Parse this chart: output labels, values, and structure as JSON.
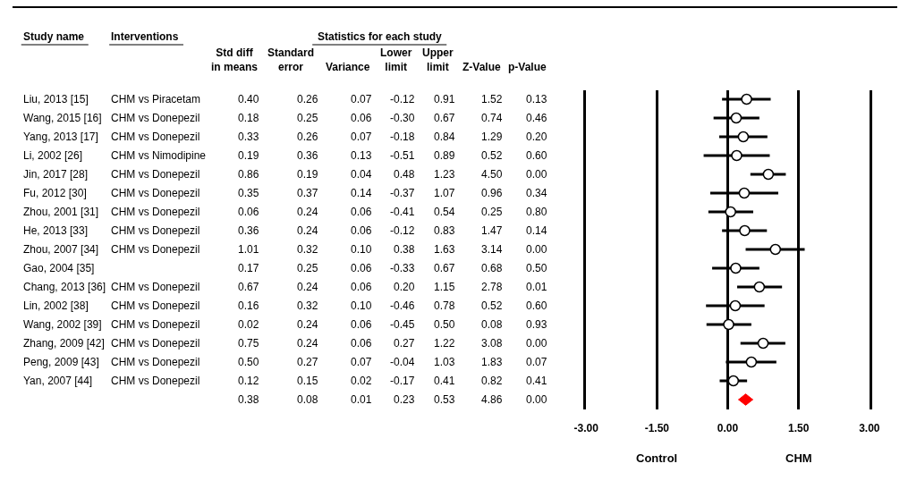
{
  "chart_data": [
    {
      "type": "other",
      "annotations": [
        "Study name",
        "Interventions",
        "Statistics for each study",
        "Std diff\nin means",
        "Standard\nerror",
        "Variance",
        "Lower\nlimit",
        "Upper\nlimit",
        "Z-Value",
        "p-Value",
        "Liu, 2013 [15]",
        "CHM vs Piracetam",
        "0.40",
        "0.26",
        "0.07",
        "-0.12",
        "0.91",
        "1.52",
        "0.13",
        "Wang, 2015 [16]",
        "CHM vs Donepezil",
        "0.18",
        "0.25",
        "0.06",
        "-0.30",
        "0.67",
        "0.74",
        "0.46",
        "Yang, 2013 [17]",
        "CHM vs Donepezil",
        "0.33",
        "0.26",
        "0.07",
        "-0.18",
        "0.84",
        "1.29",
        "0.20",
        "Li, 2002 [26]",
        "CHM vs Nimodipine",
        "0.19",
        "0.36",
        "0.13",
        "-0.51",
        "0.89",
        "0.52",
        "0.60",
        "Jin, 2017 [28]",
        "CHM vs Donepezil",
        "0.86",
        "0.19",
        "0.04",
        "0.48",
        "1.23",
        "4.50",
        "0.00",
        "Fu, 2012 [30]",
        "CHM vs Donepezil",
        "0.35",
        "0.37",
        "0.14",
        "-0.37",
        "1.07",
        "0.96",
        "0.34",
        "Zhou, 2001 [31]",
        "CHM vs Donepezil",
        "0.06",
        "0.24",
        "0.06",
        "-0.41",
        "0.54",
        "0.25",
        "0.80",
        "He, 2013 [33]",
        "CHM vs Donepezil",
        "0.36",
        "0.24",
        "0.06",
        "-0.12",
        "0.83",
        "1.47",
        "0.14",
        "Zhou, 2007 [34]",
        "CHM vs Donepezil",
        "1.01",
        "0.32",
        "0.10",
        "0.38",
        "1.63",
        "3.14",
        "0.00",
        "Gao, 2004 [35]",
        null,
        "0.17",
        "0.25",
        "0.06",
        "-0.33",
        "0.67",
        "0.68",
        "0.50",
        "Chang, 2013 [36]",
        "CHM vs Donepezil",
        "0.67",
        "0.24",
        "0.06",
        "0.20",
        "1.15",
        "2.78",
        "0.01",
        "Lin, 2002 [38]",
        "CHM vs Donepezil",
        "0.16",
        "0.32",
        "0.10",
        "-0.46",
        "0.78",
        "0.52",
        "0.60",
        "Wang, 2002 [39]",
        "CHM vs Donepezil",
        "0.02",
        "0.24",
        "0.06",
        "-0.45",
        "0.50",
        "0.08",
        "0.93",
        "Zhang, 2009 [42]",
        "CHM vs Donepezil",
        "0.75",
        "0.24",
        "0.06",
        "0.27",
        "1.22",
        "3.08",
        "0.00",
        "Peng, 2009 [43]",
        "CHM vs Donepezil",
        "0.50",
        "0.27",
        "0.07",
        "-0.04",
        "1.03",
        "1.83",
        "0.07",
        "Yan, 2007 [44]",
        "CHM vs Donepezil",
        "0.12",
        "0.15",
        "0.02",
        "-0.17",
        "0.41",
        "0.82",
        "0.41",
        "0.38",
        "0.08",
        "0.01",
        "0.23",
        "0.53",
        "4.86",
        "0.00"
      ]
    },
    {
      "type": "scatter",
      "orientation": "horizontal",
      "categories": [
        null,
        null,
        null,
        null,
        null,
        null,
        null,
        null,
        null,
        null,
        null,
        null,
        null,
        null,
        null,
        null,
        null
      ],
      "series": [
        {
          "color": "#000000",
          "marker": "circle",
          "values": [
            0.4,
            0.18,
            0.33,
            0.19,
            0.86,
            0.35,
            0.06,
            0.36,
            1.01,
            0.17,
            0.67,
            0.16,
            0.02,
            0.75,
            0.5,
            0.12,
            null
          ],
          "errors": [
            [
              -0.12,
              0.91
            ],
            [
              -0.3,
              0.67
            ],
            [
              -0.18,
              0.84
            ],
            [
              -0.51,
              0.89
            ],
            [
              0.48,
              1.23
            ],
            [
              -0.37,
              1.07
            ],
            [
              -0.41,
              0.54
            ],
            [
              -0.12,
              0.83
            ],
            [
              0.38,
              1.63
            ],
            [
              -0.33,
              0.67
            ],
            [
              0.2,
              1.15
            ],
            [
              -0.46,
              0.78
            ],
            [
              -0.45,
              0.5
            ],
            [
              0.27,
              1.22
            ],
            [
              -0.04,
              1.03
            ],
            [
              -0.17,
              0.41
            ],
            null
          ]
        },
        {
          "color": "#ff0000",
          "marker": "diamond",
          "values": [
            null,
            null,
            null,
            null,
            null,
            null,
            null,
            null,
            null,
            null,
            null,
            null,
            null,
            null,
            null,
            null,
            0.38
          ],
          "errors": [
            null,
            null,
            null,
            null,
            null,
            null,
            null,
            null,
            null,
            null,
            null,
            null,
            null,
            null,
            null,
            null,
            [
              0.23,
              0.53
            ]
          ]
        }
      ],
      "xlim": [
        -3,
        3
      ],
      "xticks": [
        {
          "value": -3,
          "label": "-3.00"
        },
        {
          "value": -1.5,
          "label": "-1.50"
        },
        {
          "value": 0,
          "label": "0.00"
        },
        {
          "value": 1.5,
          "label": "1.50"
        },
        {
          "value": 3,
          "label": "3.00"
        }
      ],
      "grid": "x",
      "tick_labels": "x",
      "annotations": [
        "Control",
        "CHM"
      ]
    }
  ]
}
